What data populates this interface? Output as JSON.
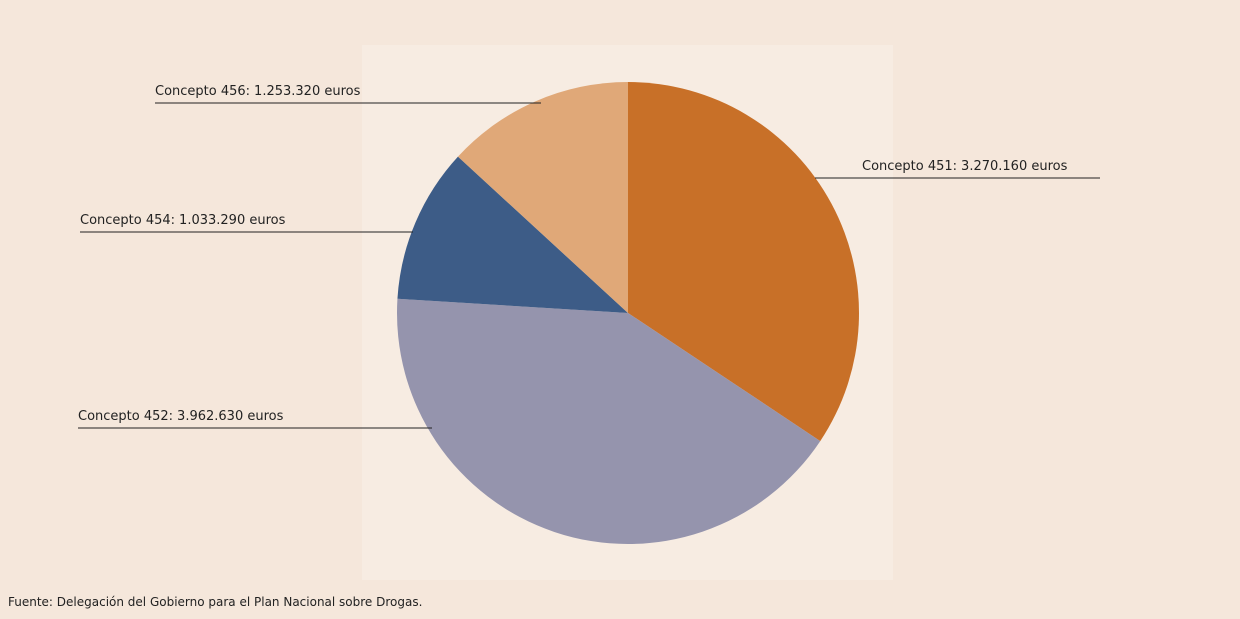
{
  "chart_data": {
    "type": "pie",
    "categories": [
      "Concepto 451:",
      "Concepto 452:",
      "Concepto 454:",
      "Concepto 456:"
    ],
    "values": [
      3270160,
      3962630,
      1033290,
      1253320
    ],
    "value_labels": [
      "3.270.160 euros",
      "3.962.630 euros",
      "1.033.290 euros",
      "1.253.320 euros"
    ],
    "colors": [
      "#c87028",
      "#9594ad",
      "#3d5c87",
      "#e0a878"
    ],
    "source": "Fuente: Delegación del Gobierno para el Plan Nacional sobre Drogas."
  }
}
